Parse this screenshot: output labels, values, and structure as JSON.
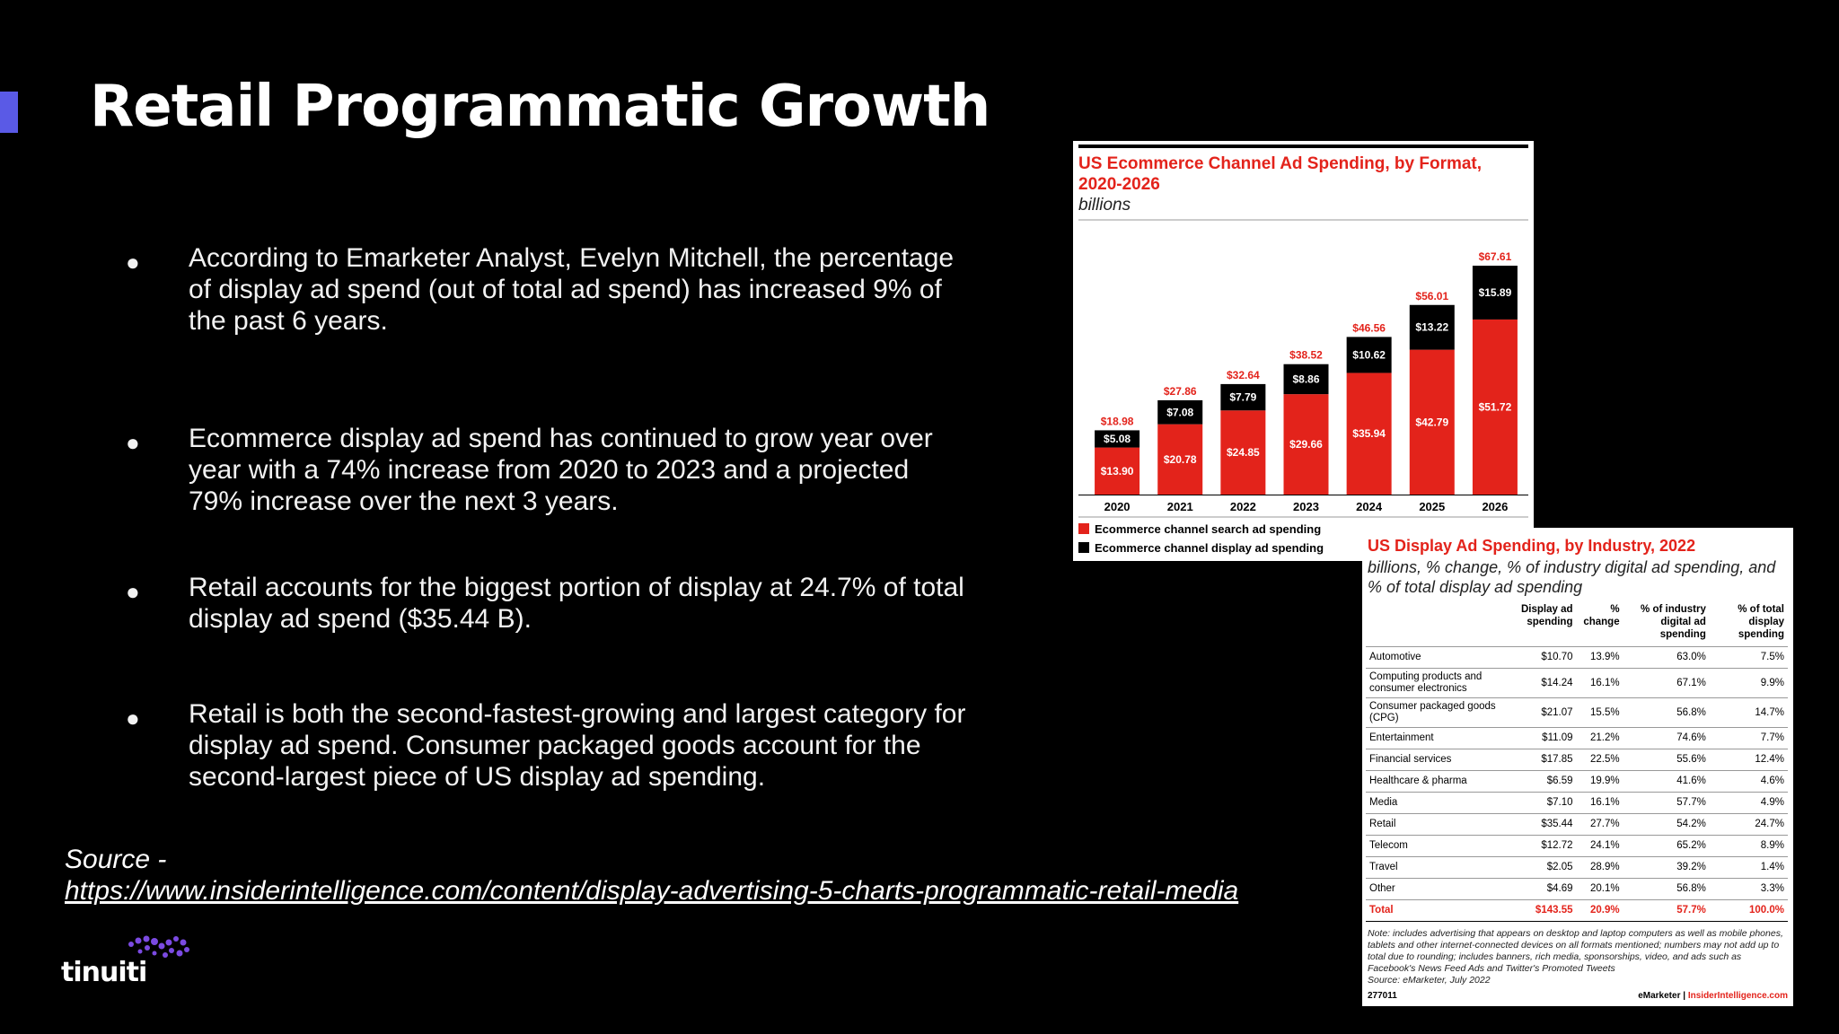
{
  "slide": {
    "title": "Retail Programmatic Growth",
    "bullets": [
      "According to Emarketer Analyst, Evelyn Mitchell, the percentage of display ad spend (out of total ad spend) has increased 9% of the past 6 years.",
      "Ecommerce display ad spend has continued to grow year over year with a 74% increase from 2020 to 2023 and a projected 79% increase over the next 3 years.",
      "Retail accounts for the biggest portion of display at 24.7% of total display ad spend ($35.44 B).",
      "Retail is both the second-fastest-growing and largest category for display ad spend. Consumer packaged goods account for the second-largest piece of US display ad spending."
    ],
    "bullet_glyph": "●",
    "source_label": "Source -",
    "source_url": "https://www.insiderintelligence.com/content/display-advertising-5-charts-programmatic-retail-media",
    "logo_text": "tinuiti",
    "accent_color": "#5a5ae6"
  },
  "chart_data": [
    {
      "type": "bar",
      "stacked": true,
      "title": "US Ecommerce Channel Ad Spending, by Format, 2020-2026",
      "subtitle": "billions",
      "categories": [
        "2020",
        "2021",
        "2022",
        "2023",
        "2024",
        "2025",
        "2026"
      ],
      "series": [
        {
          "name": "Ecommerce channel search ad spending",
          "color": "#e3231b",
          "values": [
            13.9,
            20.78,
            24.85,
            29.66,
            35.94,
            42.79,
            51.72
          ],
          "labels": [
            "$13.90",
            "$20.78",
            "$24.85",
            "$29.66",
            "$35.94",
            "$42.79",
            "$51.72"
          ]
        },
        {
          "name": "Ecommerce channel display ad spending",
          "color": "#000000",
          "values": [
            5.08,
            7.08,
            7.79,
            8.86,
            10.62,
            13.22,
            15.89
          ],
          "labels": [
            "$5.08",
            "$7.08",
            "$7.79",
            "$8.86",
            "$10.62",
            "$13.22",
            "$15.89"
          ]
        }
      ],
      "totals": [
        18.98,
        27.86,
        32.64,
        38.52,
        46.56,
        56.01,
        67.61
      ],
      "total_labels": [
        "$18.98",
        "$27.86",
        "$32.64",
        "$38.52",
        "$46.56",
        "$56.01",
        "$67.61"
      ],
      "ylim": [
        0,
        70
      ],
      "legend": "bottom-left"
    },
    {
      "type": "table",
      "title": "US Display Ad Spending, by Industry, 2022",
      "subtitle": "billions, % change, % of industry digital ad spending, and % of total display ad spending",
      "columns": [
        "",
        "Display ad spending",
        "% change",
        "% of industry digital ad spending",
        "% of total display spending"
      ],
      "rows": [
        [
          "Automotive",
          "$10.70",
          "13.9%",
          "63.0%",
          "7.5%"
        ],
        [
          "Computing products and consumer electronics",
          "$14.24",
          "16.1%",
          "67.1%",
          "9.9%"
        ],
        [
          "Consumer packaged goods (CPG)",
          "$21.07",
          "15.5%",
          "56.8%",
          "14.7%"
        ],
        [
          "Entertainment",
          "$11.09",
          "21.2%",
          "74.6%",
          "7.7%"
        ],
        [
          "Financial services",
          "$17.85",
          "22.5%",
          "55.6%",
          "12.4%"
        ],
        [
          "Healthcare & pharma",
          "$6.59",
          "19.9%",
          "41.6%",
          "4.6%"
        ],
        [
          "Media",
          "$7.10",
          "16.1%",
          "57.7%",
          "4.9%"
        ],
        [
          "Retail",
          "$35.44",
          "27.7%",
          "54.2%",
          "24.7%"
        ],
        [
          "Telecom",
          "$12.72",
          "24.1%",
          "65.2%",
          "8.9%"
        ],
        [
          "Travel",
          "$2.05",
          "28.9%",
          "39.2%",
          "1.4%"
        ],
        [
          "Other",
          "$4.69",
          "20.1%",
          "56.8%",
          "3.3%"
        ]
      ],
      "total": [
        "Total",
        "$143.55",
        "20.9%",
        "57.7%",
        "100.0%"
      ],
      "note": "Note: includes advertising that appears on desktop and laptop computers as well as mobile phones, tablets and other internet-connected devices on all formats mentioned; numbers may not add up to total due to rounding; includes banners, rich media, sponsorships, video, and ads such as Facebook's News Feed Ads and Twitter's Promoted Tweets",
      "source": "Source: eMarketer, July 2022",
      "chart_id": "277011",
      "brand_left": "eMarketer",
      "brand_sep": "|",
      "brand_right": "InsiderIntelligence.com"
    }
  ]
}
